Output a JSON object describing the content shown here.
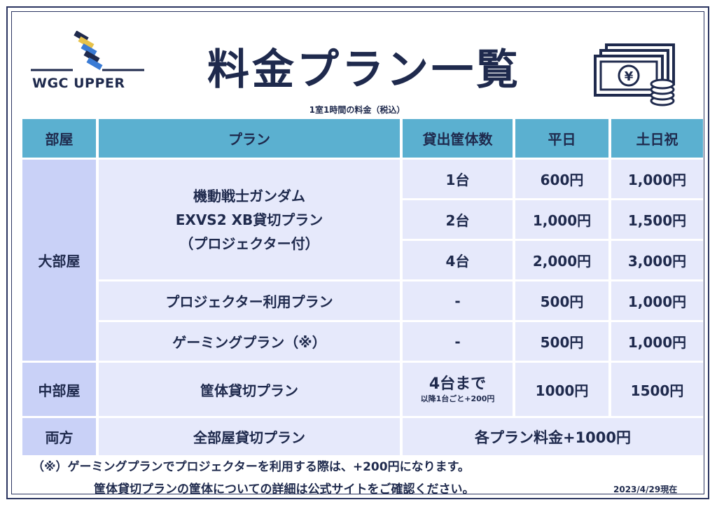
{
  "logo": {
    "text": "WGC UPPER"
  },
  "title": "料金プラン一覧",
  "subtitle": "1室1時間の料金（税込）",
  "currency_symbol": "¥",
  "table": {
    "headers": [
      "部屋",
      "プラン",
      "貸出筐体数",
      "平日",
      "土日祝"
    ],
    "large_room": {
      "label": "大部屋",
      "gundam_plan": [
        "機動戦士ガンダム",
        "EXVS2 XB貸切プラン",
        "（プロジェクター付）"
      ],
      "gundam_rows": [
        {
          "units": "1台",
          "weekday": "600円",
          "weekend": "1,000円"
        },
        {
          "units": "2台",
          "weekday": "1,000円",
          "weekend": "1,500円"
        },
        {
          "units": "4台",
          "weekday": "2,000円",
          "weekend": "3,000円"
        }
      ],
      "projector": {
        "plan": "プロジェクター利用プラン",
        "units": "-",
        "weekday": "500円",
        "weekend": "1,000円"
      },
      "gaming": {
        "plan": "ゲーミングプラン（※）",
        "units": "-",
        "weekday": "500円",
        "weekend": "1,000円"
      }
    },
    "medium_room": {
      "label": "中部屋",
      "plan": "筐体貸切プラン",
      "units": "4台まで",
      "units_note": "以降1台ごと+200円",
      "weekday": "1000円",
      "weekend": "1500円"
    },
    "both": {
      "label": "両方",
      "plan": "全部屋貸切プラン",
      "price": "各プラン料金+1000円"
    }
  },
  "notes": [
    "（※）ゲーミングプランでプロジェクターを利用する際は、+200円になります。",
    "筐体貸切プランの筐体についての詳細は公式サイトをご確認ください。"
  ],
  "as_of": "2023/4/29現在"
}
